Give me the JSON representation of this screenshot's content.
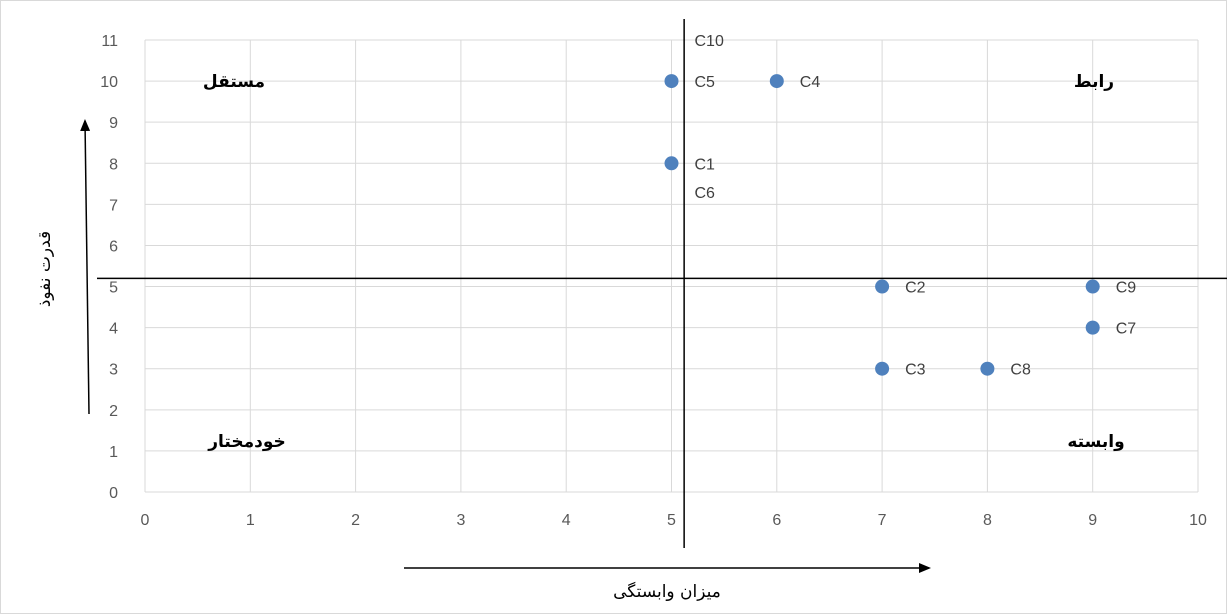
{
  "chart_data": {
    "type": "scatter",
    "title": "",
    "xlabel": "میزان وابستگی",
    "ylabel": "قدرت نفوذ",
    "xlim": [
      0,
      10
    ],
    "ylim": [
      0,
      11
    ],
    "x_ticks": [
      "0",
      "1",
      "2",
      "3",
      "4",
      "5",
      "6",
      "7",
      "8",
      "9",
      "10"
    ],
    "y_ticks": [
      "0",
      "1",
      "2",
      "3",
      "4",
      "5",
      "6",
      "7",
      "8",
      "9",
      "10",
      "11"
    ],
    "grid": true,
    "point_color": "#4f81bd",
    "points": [
      {
        "x": 5,
        "y": 10,
        "label": "C5"
      },
      {
        "x": 6,
        "y": 10,
        "label": "C4"
      },
      {
        "x": 5,
        "y": 8,
        "label": "C1"
      },
      {
        "x": 7,
        "y": 5,
        "label": "C2"
      },
      {
        "x": 9,
        "y": 5,
        "label": "C9"
      },
      {
        "x": 9,
        "y": 4,
        "label": "C7"
      },
      {
        "x": 7,
        "y": 3,
        "label": "C3"
      },
      {
        "x": 8,
        "y": 3,
        "label": "C8"
      }
    ],
    "extra_labels": [
      {
        "x": 5,
        "y": 11,
        "label": "C10"
      },
      {
        "x": 5,
        "y": 7.3,
        "label": "C6"
      }
    ],
    "quadrant_labels": {
      "top_left": "مستقل",
      "top_right": "رابط",
      "bottom_left": "خودمختار",
      "bottom_right": "وابسته"
    },
    "divider": {
      "x": 5.12,
      "y": 5.2
    }
  }
}
